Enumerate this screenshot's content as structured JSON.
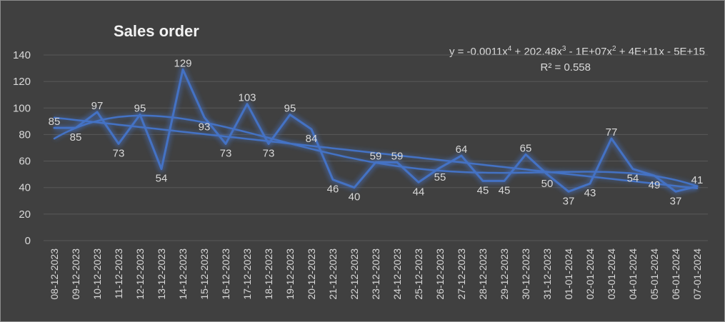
{
  "chart_data": {
    "type": "line",
    "title": "Sales order",
    "categories": [
      "08-12-2023",
      "09-12-2023",
      "10-12-2023",
      "11-12-2023",
      "12-12-2023",
      "13-12-2023",
      "14-12-2023",
      "15-12-2023",
      "16-12-2023",
      "17-12-2023",
      "18-12-2023",
      "19-12-2023",
      "20-12-2023",
      "21-12-2023",
      "22-12-2023",
      "23-12-2023",
      "24-12-2023",
      "25-12-2023",
      "26-12-2023",
      "27-12-2023",
      "28-12-2023",
      "29-12-2023",
      "30-12-2023",
      "31-12-2023",
      "01-01-2024",
      "02-01-2024",
      "03-01-2024",
      "04-01-2024",
      "05-01-2024",
      "06-01-2024",
      "07-01-2024"
    ],
    "values": [
      85,
      85,
      97,
      73,
      95,
      54,
      129,
      93,
      73,
      103,
      73,
      95,
      84,
      46,
      40,
      59,
      59,
      44,
      55,
      64,
      45,
      45,
      65,
      50,
      37,
      43,
      77,
      54,
      49,
      37,
      41
    ],
    "yticks": [
      0,
      20,
      40,
      60,
      80,
      100,
      120,
      140
    ],
    "ylim": [
      0,
      140
    ],
    "grid": true,
    "data_labels": true,
    "trendlines": [
      {
        "type": "polynomial",
        "order": 4,
        "equation": "y = -0.0011x4 + 202.48x3 - 1E+07x2 + 4E+11x - 5E+15",
        "r_squared": "R² = 0.558"
      },
      {
        "type": "linear"
      }
    ],
    "equation_parts": {
      "eq_a": "y = -0.0011x",
      "eq_b": " + 202.48x",
      "eq_c": " - 1E+07x",
      "eq_d": " + 4E+11x - 5E+15",
      "exp4": "4",
      "exp3": "3",
      "exp2": "2"
    },
    "colors": {
      "background": "#404040",
      "series": "#4472c4",
      "grid": "#595959",
      "text": "#d9d9d9"
    }
  }
}
